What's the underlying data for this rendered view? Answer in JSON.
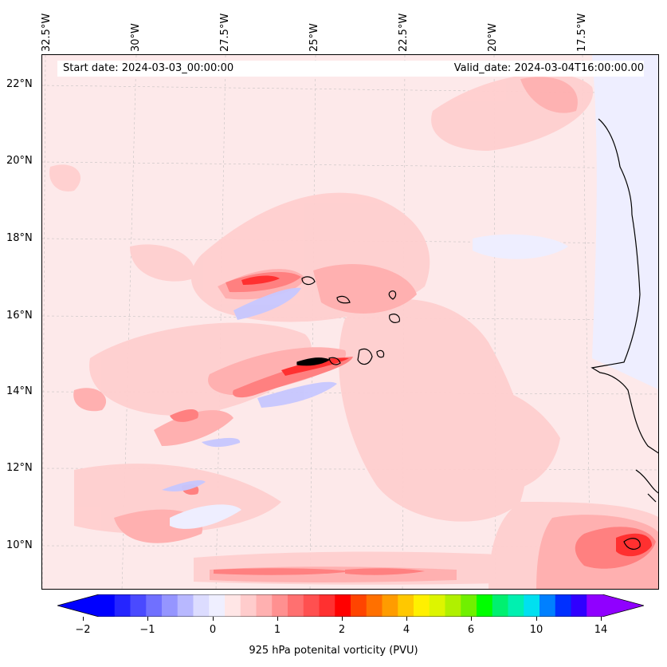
{
  "header": {
    "start_date": "Start date: 2024-03-03_00:00:00",
    "valid_date": "Valid_date: 2024-03-04T16:00:00.00"
  },
  "map": {
    "region": "Cape Verde / West Africa coast",
    "lon_labels": [
      "32.5°W",
      "30°W",
      "27.5°W",
      "25°W",
      "22.5°W",
      "20°W",
      "17.5°W"
    ],
    "lat_labels": [
      "22°N",
      "20°N",
      "18°N",
      "16°N",
      "14°N",
      "12°N",
      "10°N"
    ],
    "background_color": "#fde9ea",
    "grid": true
  },
  "colorbar": {
    "label": "925 hPa potenital vorticity (PVU)",
    "ticks": [
      "−2",
      "−1",
      "0",
      "1",
      "2",
      "4",
      "6",
      "10",
      "14"
    ],
    "colors": [
      "#0000ff",
      "#2525ff",
      "#4a4aff",
      "#7070ff",
      "#9595ff",
      "#b8b8ff",
      "#dcdcff",
      "#efefff",
      "#ffe6e6",
      "#ffcccc",
      "#ffb0b0",
      "#ff9090",
      "#ff7070",
      "#ff5050",
      "#ff3030",
      "#ff0000",
      "#ff4400",
      "#ff7000",
      "#ff9c00",
      "#ffc800",
      "#fff000",
      "#ddf500",
      "#b0f000",
      "#70f000",
      "#00ff00",
      "#00f070",
      "#00f0b0",
      "#00e0f0",
      "#0080ff",
      "#0030ff",
      "#3000ff",
      "#9000ff"
    ]
  }
}
